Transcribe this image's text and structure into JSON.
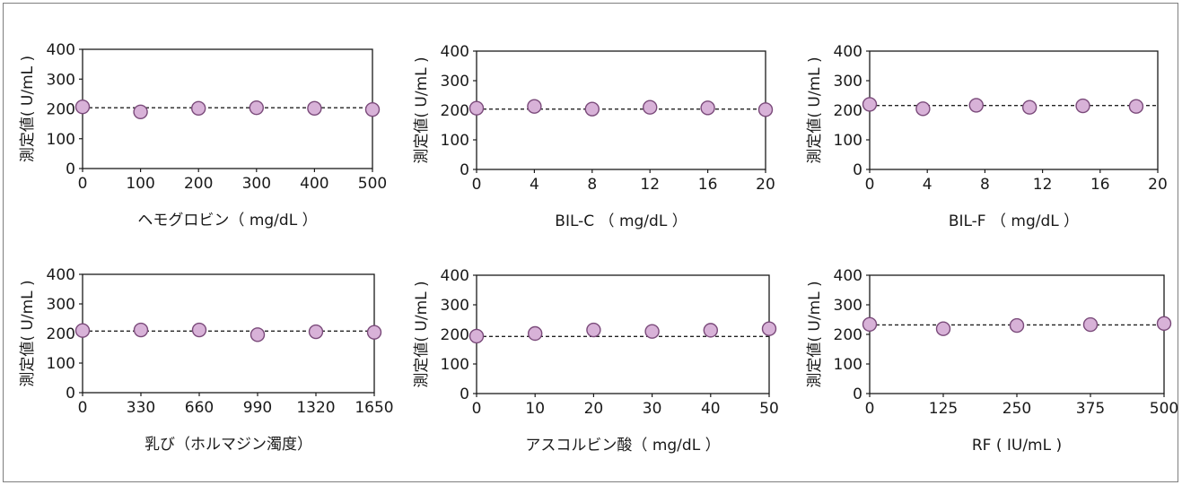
{
  "colors": {
    "marker_fill": "#d8b2d8",
    "marker_stroke": "#7a4a7a",
    "line": "#222222",
    "axis": "#1a1a1a"
  },
  "chart_data": [
    {
      "type": "scatter",
      "xlabel": "ヘモグロビン（ mg/dL ）",
      "ylabel": "測定値( U/mL )",
      "xticks": [
        "0",
        "100",
        "200",
        "300",
        "400",
        "500"
      ],
      "yticks": [
        "0",
        "100",
        "200",
        "300",
        "400"
      ],
      "xlim": [
        0,
        500
      ],
      "ylim": [
        0,
        400
      ],
      "x": [
        0,
        100,
        200,
        300,
        400,
        500
      ],
      "values": [
        207,
        190,
        202,
        204,
        202,
        198
      ],
      "reference_line": 204
    },
    {
      "type": "scatter",
      "xlabel": "BIL-C （ mg/dL ）",
      "ylabel": "測定値( U/mL )",
      "xticks": [
        "0",
        "4",
        "8",
        "12",
        "16",
        "20"
      ],
      "yticks": [
        "0",
        "100",
        "200",
        "300",
        "400"
      ],
      "xlim": [
        0,
        21
      ],
      "ylim": [
        0,
        400
      ],
      "x": [
        0,
        4.2,
        8.4,
        12.6,
        16.8,
        21
      ],
      "values": [
        207,
        213,
        204,
        210,
        208,
        202
      ],
      "reference_line": 204
    },
    {
      "type": "scatter",
      "xlabel": "BIL-F （ mg/dL ）",
      "ylabel": "測定値( U/mL )",
      "xticks": [
        "0",
        "4",
        "8",
        "12",
        "16",
        "20"
      ],
      "yticks": [
        "0",
        "100",
        "200",
        "300",
        "400"
      ],
      "xlim": [
        0,
        20
      ],
      "ylim": [
        0,
        400
      ],
      "x": [
        0,
        3.7,
        7.4,
        11.1,
        14.8,
        18.5
      ],
      "values": [
        220,
        205,
        217,
        210,
        215,
        213
      ],
      "reference_line": 216
    },
    {
      "type": "scatter",
      "xlabel": "乳び（ホルマジン濁度）",
      "ylabel": "測定値( U/mL )",
      "xticks": [
        "0",
        "330",
        "660",
        "990",
        "1320",
        "1650"
      ],
      "yticks": [
        "0",
        "100",
        "200",
        "300",
        "400"
      ],
      "xlim": [
        0,
        1650
      ],
      "ylim": [
        0,
        400
      ],
      "x": [
        0,
        330,
        660,
        990,
        1320,
        1650
      ],
      "values": [
        210,
        212,
        212,
        196,
        206,
        204
      ],
      "reference_line": 208
    },
    {
      "type": "scatter",
      "xlabel": "アスコルビン酸（ mg/dL ）",
      "ylabel": "測定値( U/mL )",
      "xticks": [
        "0",
        "10",
        "20",
        "30",
        "40",
        "50"
      ],
      "yticks": [
        "0",
        "100",
        "200",
        "300",
        "400"
      ],
      "xlim": [
        0,
        50
      ],
      "ylim": [
        0,
        400
      ],
      "x": [
        0,
        10,
        20,
        30,
        40,
        50
      ],
      "values": [
        194,
        203,
        215,
        210,
        214,
        219
      ],
      "reference_line": 193
    },
    {
      "type": "scatter",
      "xlabel": "RF ( IU/mL )",
      "ylabel": "測定値( U/mL )",
      "xticks": [
        "0",
        "125",
        "250",
        "375",
        "500"
      ],
      "yticks": [
        "0",
        "100",
        "200",
        "300",
        "400"
      ],
      "xlim": [
        0,
        500
      ],
      "ylim": [
        0,
        400
      ],
      "x": [
        0,
        125,
        250,
        375,
        500
      ],
      "values": [
        234,
        219,
        230,
        233,
        237
      ],
      "reference_line": 232
    }
  ]
}
